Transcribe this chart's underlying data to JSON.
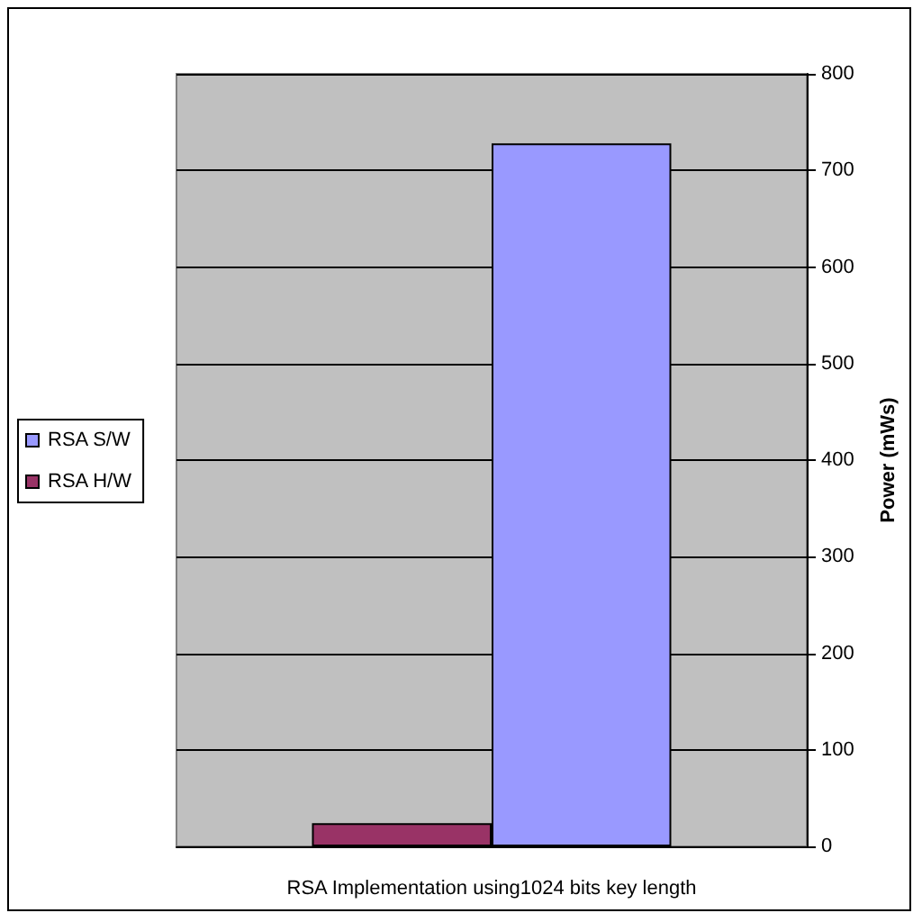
{
  "chart_data": {
    "type": "bar",
    "xlabel": "RSA Implementation using1024 bits key length",
    "ylabel": "Power (mWs)",
    "categories": [
      null
    ],
    "series": [
      {
        "name": "RSA H/W",
        "color": "#993366",
        "values": [
          24
        ]
      },
      {
        "name": "RSA S/W",
        "color": "#9999ff",
        "values": [
          728
        ]
      }
    ],
    "ylim": [
      0,
      800
    ],
    "yticks": [
      0,
      100,
      200,
      300,
      400,
      500,
      600,
      700,
      800
    ],
    "grid": "y",
    "legend": "left"
  }
}
